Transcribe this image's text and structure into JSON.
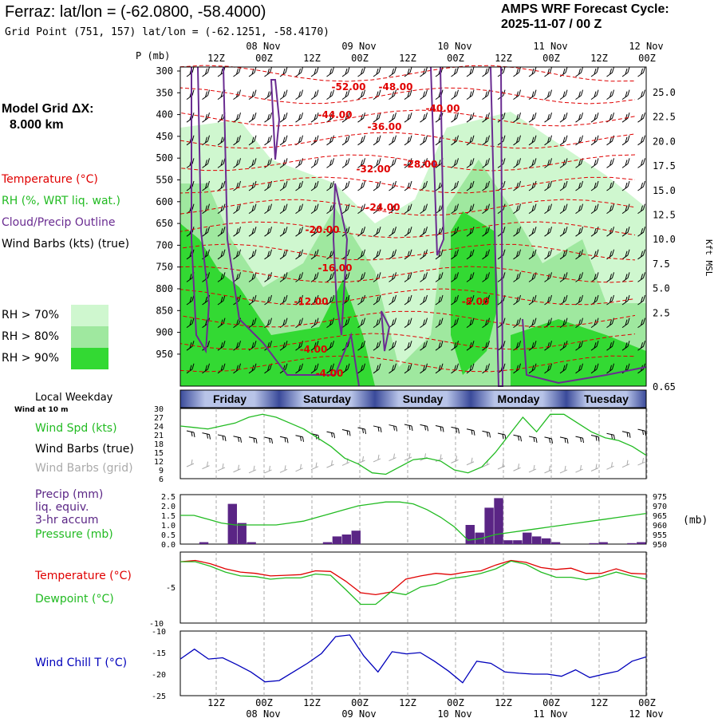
{
  "header": {
    "station_title": "Ferraz:  lat/lon = (-62.0800, -58.4000)",
    "grid_point": "Grid Point (751, 157) lat/lon = (-62.1251, -58.4170)",
    "product": "AMPS WRF Forecast Cycle:",
    "cycle": "2025-11-07 / 00  Z"
  },
  "left_panel": {
    "grid_label": "Model Grid ΔX:",
    "grid_value": "8.000 km",
    "legend_temperature": "Temperature (°C)",
    "legend_rh": "RH (%, WRT liq. wat.)",
    "legend_cloud": "Cloud/Precip Outline",
    "legend_wind": "Wind Barbs (kts) (true)",
    "rh_70": "RH > 70%",
    "rh_80": "RH > 80%",
    "rh_90": "RH > 90%",
    "local_weekday": "Local Weekday",
    "wind_at": "Wind at 10 m",
    "wind_spd": "Wind Spd (kts)",
    "wind_barbs_true": "Wind Barbs (true)",
    "wind_barbs_grid": "Wind Barbs (grid)",
    "precip_1": "Precip (mm)",
    "precip_2": "liq. equiv.",
    "precip_3": "3-hr accum",
    "pressure": "Pressure (mb)",
    "temperature": "Temperature (°C)",
    "dewpoint": "Dewpoint (°C)",
    "wind_chill": "Wind Chill T (°C)"
  },
  "colors": {
    "rh70": "#cff7cf",
    "rh80": "#9fe89f",
    "rh90": "#33d933",
    "temp": "#e00000",
    "rh": "#22bb22",
    "cloud": "#6a2c91",
    "precip": "#5a2585",
    "dew": "#22bb22",
    "chill": "#0000bb"
  },
  "chart_data": [
    {
      "type": "cross-section",
      "ylabel": "P (mb)",
      "right_label": "Kft MSL",
      "pressure_ticks": [
        "300",
        "350",
        "400",
        "450",
        "500",
        "550",
        "600",
        "650",
        "700",
        "750",
        "800",
        "850",
        "900",
        "950"
      ],
      "kft_ticks": [
        "25.0",
        "22.5",
        "20.0",
        "17.5",
        "15.0",
        "12.5",
        "10.0",
        "7.5",
        "5.0",
        "2.5",
        "0.65"
      ],
      "time_ticks_top": [
        "12Z",
        "00Z",
        "12Z",
        "00Z",
        "12Z",
        "00Z",
        "12Z",
        "00Z",
        "12Z",
        "00Z"
      ],
      "date_labels_top": [
        "08 Nov",
        "09 Nov",
        "10 Nov",
        "11 Nov",
        "12 Nov"
      ],
      "temperature_labels": [
        "-52.00",
        "-48.00",
        "-44.00",
        "-40.00",
        "-36.00",
        "-32.00",
        "-28.00",
        "-24.00",
        "-20.00",
        "-16.00",
        "-12.00",
        "-8.00",
        "-4.00",
        "-4.00"
      ]
    },
    {
      "type": "weekday-bar",
      "days": [
        "Friday",
        "Saturday",
        "Sunday",
        "Monday",
        "Tuesday"
      ]
    },
    {
      "type": "line",
      "title": "Wind Spd (kts)",
      "yticks": [
        "30",
        "27",
        "24",
        "21",
        "18",
        "15",
        "12",
        "9",
        "6"
      ],
      "ylim": [
        6,
        30
      ],
      "values": [
        24,
        23.5,
        23,
        24,
        25,
        27,
        28,
        27,
        25,
        23,
        20,
        17,
        13,
        11,
        8,
        7.5,
        10,
        12.5,
        13,
        12,
        9,
        8,
        10,
        15,
        21,
        27,
        22,
        28,
        28,
        25,
        22,
        20,
        19,
        17,
        14
      ]
    },
    {
      "type": "bar+line",
      "title": "Precip (mm) / Pressure (mb)",
      "yticks_left": [
        "2.5",
        "2.0",
        "1.5",
        "1.0",
        "0.5",
        "0.0"
      ],
      "yticks_right": [
        "975",
        "970",
        "965",
        "960",
        "955",
        "950"
      ],
      "right_unit": "(mb)",
      "precip": [
        0,
        0,
        0.1,
        0,
        0,
        2.1,
        1.1,
        0.1,
        0,
        0,
        0,
        0,
        0,
        0,
        0,
        0.1,
        0.4,
        0.5,
        0.7,
        0,
        0,
        0,
        0,
        0,
        0,
        0,
        0,
        0,
        0,
        0,
        1,
        0.6,
        1.9,
        2.4,
        0.2,
        0.2,
        0.6,
        0.4,
        0.3,
        0.1,
        0,
        0,
        0,
        0.05,
        0.1,
        0,
        0,
        0.05,
        0.1
      ],
      "pressure": [
        965,
        965,
        963,
        961,
        960,
        960,
        960,
        960,
        961,
        962,
        964,
        966,
        968,
        970,
        971,
        972,
        972,
        971,
        968,
        964,
        959,
        952,
        953,
        955,
        956,
        957,
        958,
        959,
        960,
        961,
        962,
        963,
        964,
        965,
        966
      ]
    },
    {
      "type": "line",
      "title": "Temperature / Dewpoint (°C)",
      "yticks": [
        "-5",
        "-10"
      ],
      "ylim": [
        -10,
        0
      ],
      "series": [
        {
          "name": "Temperature",
          "values": [
            -0.5,
            -0.3,
            -0.8,
            -1.6,
            -2.1,
            -2.3,
            -2.7,
            -2.6,
            -2.5,
            -1.9,
            -2.0,
            -3.5,
            -5.3,
            -5.6,
            -5.2,
            -3.2,
            -2.7,
            -2.3,
            -2.5,
            -2.1,
            -1.9,
            -1.0,
            -0.3,
            -0.6,
            -1.4,
            -1.7,
            -1.5,
            -2.3,
            -2.3,
            -1.6,
            -2.3,
            -2.4
          ]
        },
        {
          "name": "Dewpoint",
          "values": [
            -0.5,
            -0.5,
            -1.2,
            -2.1,
            -2.7,
            -2.8,
            -3.2,
            -3.0,
            -3.0,
            -2.4,
            -2.6,
            -4.8,
            -7.1,
            -7.1,
            -5.2,
            -5.6,
            -4.4,
            -4.0,
            -3.1,
            -2.8,
            -2.3,
            -1.6,
            -0.4,
            -0.9,
            -2.1,
            -2.9,
            -2.9,
            -3.3,
            -2.8,
            -2.1,
            -2.7,
            -3.2
          ]
        }
      ]
    },
    {
      "type": "line",
      "title": "Wind Chill T (°C)",
      "yticks": [
        "-10",
        "-15",
        "-20",
        "-25"
      ],
      "ylim": [
        -25,
        -10
      ],
      "values": [
        -16.5,
        -14.2,
        -16.5,
        -16.2,
        -17.8,
        -19.5,
        -21.8,
        -21.5,
        -19.5,
        -17.5,
        -15.2,
        -11.3,
        -10.9,
        -15.8,
        -19.5,
        -14.8,
        -15.3,
        -15.0,
        -17.0,
        -19.3,
        -22.0,
        -17.0,
        -17.5,
        -19.5,
        -19.8,
        -20.0,
        -20.0,
        -20.5,
        -19.0,
        -20.8,
        -20.0,
        -19.3,
        -17.0,
        -16.0
      ]
    }
  ]
}
